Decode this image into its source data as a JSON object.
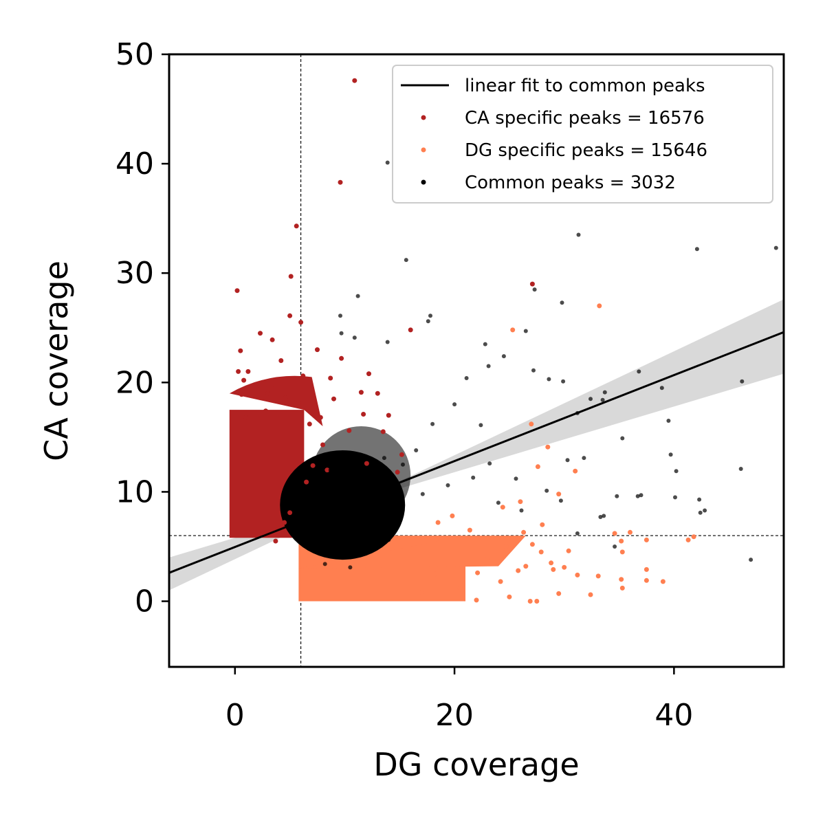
{
  "chart_data": {
    "type": "scatter",
    "title": "",
    "xlabel": "DG coverage",
    "ylabel": "CA coverage",
    "xlim": [
      -6,
      50
    ],
    "ylim": [
      -6,
      50
    ],
    "xticks": [
      0,
      20,
      40
    ],
    "yticks": [
      0,
      10,
      20,
      30,
      40,
      50
    ],
    "grid": false,
    "legend_position": "top-right",
    "threshold_lines": {
      "x": 6,
      "y": 6,
      "style": "dashed"
    },
    "fit_line": {
      "label": "linear fit to common peaks",
      "x": [
        -6,
        50
      ],
      "y": [
        2.6,
        24.6
      ],
      "band_upper": [
        1.0,
        27.6
      ],
      "band_lower": [
        4.0,
        20.8
      ],
      "color": "#000000",
      "band_color": "#d9d9d9"
    },
    "series": [
      {
        "name": "CA specific peaks = 16576",
        "color": "#b22222",
        "points": [
          [
            10.9,
            47.6
          ],
          [
            9.6,
            38.3
          ],
          [
            5.6,
            34.3
          ],
          [
            5.1,
            29.7
          ],
          [
            0.2,
            28.4
          ],
          [
            27.1,
            29.0
          ],
          [
            16.0,
            24.8
          ],
          [
            2.3,
            24.5
          ],
          [
            5.0,
            26.1
          ],
          [
            6.0,
            25.5
          ],
          [
            0.5,
            22.9
          ],
          [
            3.4,
            23.9
          ],
          [
            7.5,
            23.0
          ],
          [
            9.7,
            22.2
          ],
          [
            0.3,
            21.0
          ],
          [
            1.2,
            21.0
          ],
          [
            4.2,
            22.0
          ],
          [
            13.0,
            19.0
          ],
          [
            8.7,
            20.4
          ],
          [
            11.5,
            19.1
          ],
          [
            14.0,
            17.0
          ],
          [
            0.8,
            20.2
          ],
          [
            1.9,
            19.6
          ],
          [
            3.6,
            19.8
          ],
          [
            6.2,
            20.6
          ],
          [
            12.2,
            20.8
          ],
          [
            5.0,
            8.1
          ],
          [
            4.0,
            6.6
          ],
          [
            3.7,
            5.5
          ],
          [
            2.5,
            6.2
          ],
          [
            4.5,
            7.2
          ],
          [
            6.5,
            10.9
          ],
          [
            7.1,
            12.4
          ],
          [
            8.0,
            14.3
          ],
          [
            6.8,
            16.2
          ],
          [
            13.5,
            15.5
          ],
          [
            15.2,
            13.4
          ],
          [
            11.7,
            17.1
          ],
          [
            10.4,
            15.6
          ],
          [
            9.0,
            18.5
          ],
          [
            7.8,
            16.8
          ],
          [
            5.8,
            18.2
          ],
          [
            14.8,
            11.8
          ],
          [
            12.0,
            12.6
          ],
          [
            8.4,
            12.0
          ],
          [
            1.0,
            16.8
          ],
          [
            2.8,
            17.4
          ],
          [
            4.6,
            18.6
          ],
          [
            3.0,
            19.0
          ],
          [
            0.6,
            18.9
          ]
        ]
      },
      {
        "name": "DG specific peaks = 15646",
        "color": "#ff7f50",
        "points": [
          [
            33.2,
            27.0
          ],
          [
            25.3,
            24.8
          ],
          [
            27.0,
            16.2
          ],
          [
            28.5,
            14.1
          ],
          [
            27.6,
            12.3
          ],
          [
            31.0,
            11.9
          ],
          [
            29.5,
            9.8
          ],
          [
            26.0,
            9.1
          ],
          [
            24.4,
            8.6
          ],
          [
            36.0,
            6.3
          ],
          [
            41.3,
            5.6
          ],
          [
            41.8,
            5.9
          ],
          [
            34.6,
            6.2
          ],
          [
            37.5,
            5.6
          ],
          [
            35.2,
            5.5
          ],
          [
            35.3,
            4.5
          ],
          [
            30.4,
            4.6
          ],
          [
            27.9,
            4.5
          ],
          [
            28.8,
            3.5
          ],
          [
            31.2,
            2.4
          ],
          [
            33.1,
            2.3
          ],
          [
            35.2,
            2.0
          ],
          [
            35.3,
            1.2
          ],
          [
            37.5,
            2.9
          ],
          [
            37.5,
            1.9
          ],
          [
            39.0,
            1.8
          ],
          [
            32.4,
            0.6
          ],
          [
            29.5,
            0.7
          ],
          [
            26.9,
            0.0
          ],
          [
            27.5,
            0.0
          ],
          [
            25.0,
            0.4
          ],
          [
            22.0,
            0.1
          ],
          [
            24.2,
            1.8
          ],
          [
            23.5,
            5.8
          ],
          [
            21.4,
            6.5
          ],
          [
            19.8,
            7.8
          ],
          [
            18.5,
            7.2
          ],
          [
            26.5,
            3.2
          ],
          [
            25.8,
            2.8
          ],
          [
            23.0,
            3.9
          ],
          [
            22.1,
            2.6
          ],
          [
            30.0,
            3.1
          ],
          [
            29.0,
            2.9
          ],
          [
            28.0,
            7.0
          ],
          [
            26.3,
            6.3
          ],
          [
            24.7,
            5.0
          ],
          [
            27.1,
            5.2
          ],
          [
            20.5,
            1.2
          ],
          [
            18.2,
            2.5
          ],
          [
            17.0,
            0.8
          ]
        ]
      },
      {
        "name": "Common peaks = 3032",
        "color": "#000000",
        "points": [
          [
            13.9,
            40.1
          ],
          [
            31.3,
            33.5
          ],
          [
            49.3,
            32.3
          ],
          [
            42.1,
            32.2
          ],
          [
            15.6,
            31.2
          ],
          [
            27.3,
            28.5
          ],
          [
            29.8,
            27.3
          ],
          [
            11.2,
            27.9
          ],
          [
            9.6,
            26.1
          ],
          [
            17.8,
            26.1
          ],
          [
            17.6,
            25.6
          ],
          [
            9.7,
            24.5
          ],
          [
            10.9,
            24.1
          ],
          [
            13.9,
            23.7
          ],
          [
            26.5,
            24.7
          ],
          [
            22.8,
            23.5
          ],
          [
            24.5,
            22.4
          ],
          [
            23.1,
            21.5
          ],
          [
            36.8,
            21.0
          ],
          [
            27.2,
            21.1
          ],
          [
            28.6,
            20.3
          ],
          [
            29.9,
            20.1
          ],
          [
            46.2,
            20.1
          ],
          [
            38.9,
            19.5
          ],
          [
            21.1,
            20.4
          ],
          [
            32.4,
            18.5
          ],
          [
            33.5,
            18.4
          ],
          [
            33.7,
            19.1
          ],
          [
            31.2,
            17.2
          ],
          [
            39.5,
            16.5
          ],
          [
            35.3,
            14.9
          ],
          [
            39.7,
            13.4
          ],
          [
            40.2,
            11.9
          ],
          [
            46.1,
            12.1
          ],
          [
            37.0,
            9.7
          ],
          [
            36.7,
            9.6
          ],
          [
            34.8,
            9.6
          ],
          [
            40.1,
            9.5
          ],
          [
            42.3,
            9.3
          ],
          [
            42.4,
            8.1
          ],
          [
            42.8,
            8.3
          ],
          [
            33.3,
            7.7
          ],
          [
            33.6,
            7.8
          ],
          [
            31.2,
            6.2
          ],
          [
            47.0,
            3.8
          ],
          [
            34.6,
            5.0
          ],
          [
            22.4,
            16.1
          ],
          [
            20.0,
            18.0
          ],
          [
            18.0,
            16.2
          ],
          [
            16.5,
            13.8
          ],
          [
            15.3,
            12.5
          ],
          [
            14.2,
            10.8
          ],
          [
            12.9,
            9.2
          ],
          [
            11.6,
            8.4
          ],
          [
            10.1,
            8.1
          ],
          [
            9.0,
            9.5
          ],
          [
            8.2,
            7.6
          ],
          [
            7.5,
            9.8
          ],
          [
            6.9,
            6.8
          ],
          [
            11.0,
            6.1
          ],
          [
            12.8,
            5.2
          ],
          [
            14.0,
            5.6
          ],
          [
            9.3,
            4.7
          ],
          [
            8.2,
            3.4
          ],
          [
            10.5,
            3.1
          ],
          [
            12.2,
            11.5
          ],
          [
            10.8,
            12.9
          ],
          [
            8.7,
            12.0
          ],
          [
            13.6,
            13.1
          ],
          [
            17.1,
            9.8
          ],
          [
            19.4,
            10.6
          ],
          [
            21.7,
            11.3
          ],
          [
            24.0,
            9.0
          ],
          [
            26.1,
            8.3
          ],
          [
            25.6,
            11.2
          ],
          [
            23.2,
            12.6
          ],
          [
            28.4,
            10.1
          ],
          [
            29.7,
            9.2
          ],
          [
            30.3,
            12.9
          ],
          [
            31.8,
            13.1
          ]
        ]
      }
    ]
  }
}
